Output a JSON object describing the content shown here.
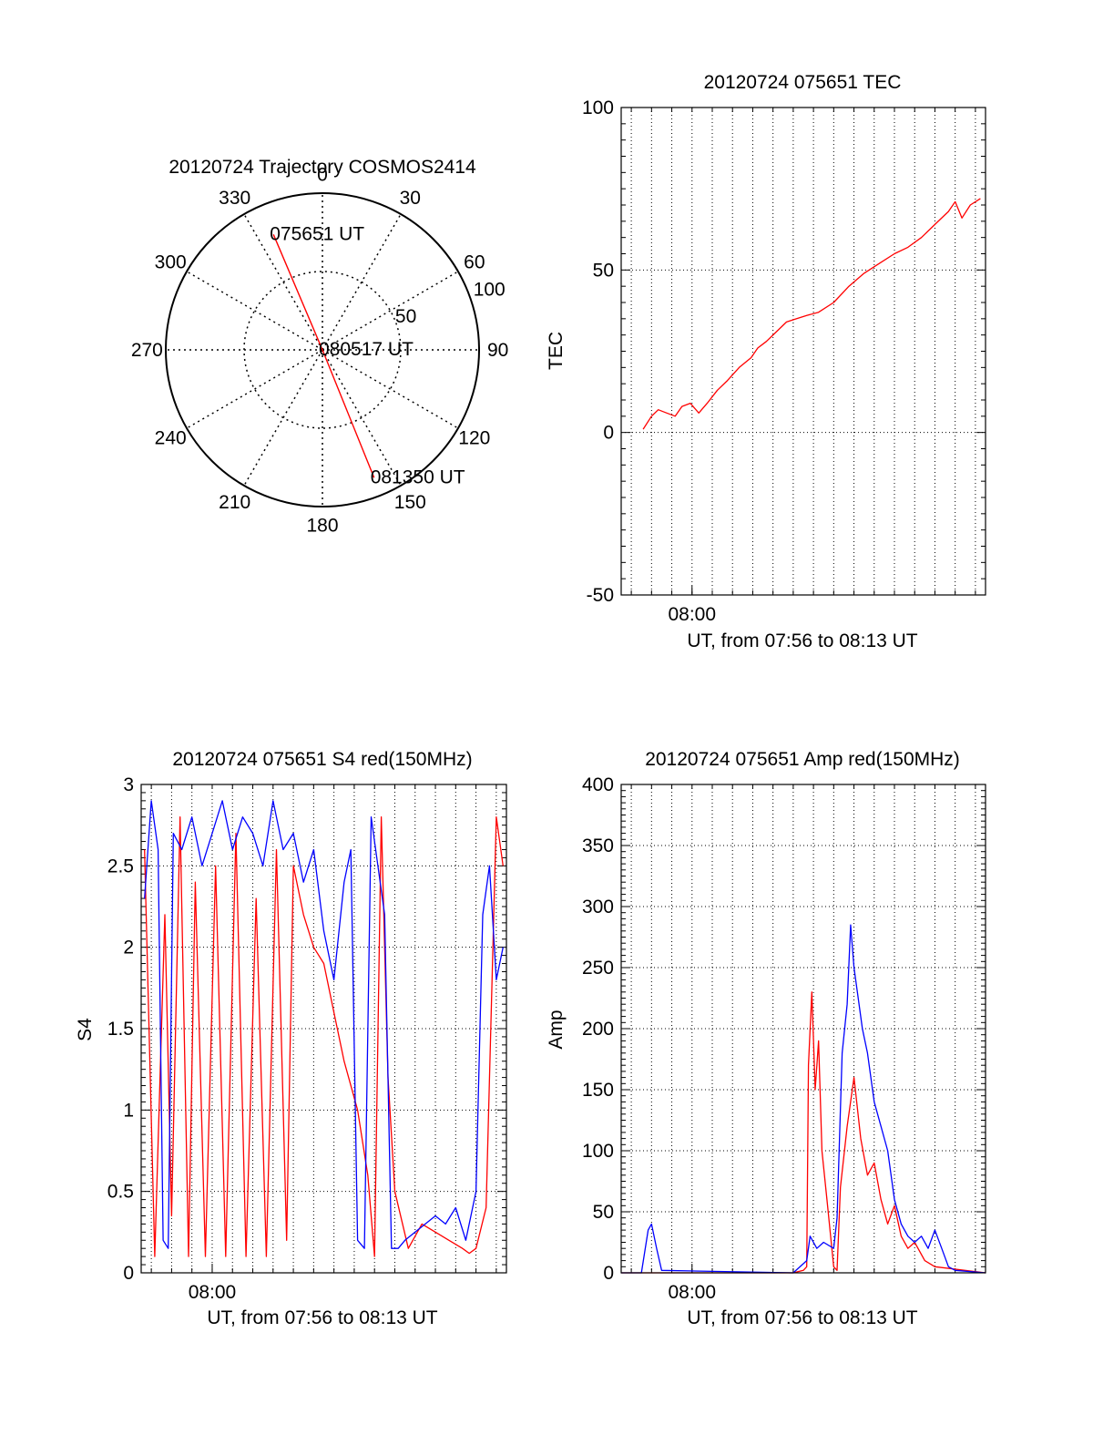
{
  "colors": {
    "red": "#ff0000",
    "blue": "#0000ff",
    "axis": "#000000",
    "grid": "#000000",
    "background": "#ffffff"
  },
  "chart_data": [
    {
      "id": "trajectory",
      "type": "polar",
      "title": "20120724 Trajectory COSMOS2414",
      "azimuth_labels": [
        "0",
        "30",
        "60",
        "90",
        "120",
        "150",
        "180",
        "210",
        "240",
        "270",
        "300",
        "330"
      ],
      "radial_ticks": [
        50,
        100
      ],
      "radial_tick_labels": [
        "50",
        "100"
      ],
      "rmax": 100,
      "grid": true,
      "series": [
        {
          "color": "red",
          "points": [
            {
              "azimuth": 337,
              "r": 80,
              "label": "075651 UT"
            },
            {
              "azimuth": 0,
              "r": 0,
              "label": "080517 UT"
            },
            {
              "azimuth": 158,
              "r": 88,
              "label": "081350 UT"
            }
          ]
        }
      ]
    },
    {
      "id": "tec",
      "type": "line",
      "title": "20120724 075651 TEC",
      "xlabel": "UT, from 07:56 to 08:13 UT",
      "ylabel": "TEC",
      "xlim": [
        "07:56:30",
        "08:14:30"
      ],
      "ylim": [
        -50,
        100
      ],
      "yticks": [
        -50,
        0,
        50,
        100
      ],
      "ytick_labels": [
        "-50",
        "0",
        "50",
        "100"
      ],
      "xtick_labels": [
        {
          "x": "08:00",
          "label": "08:00"
        }
      ],
      "grid": true,
      "series": [
        {
          "color": "red",
          "x": [
            "07:57:35",
            "07:58:00",
            "07:58:20",
            "07:58:45",
            "07:59:10",
            "07:59:30",
            "07:59:55",
            "08:00:20",
            "08:00:45",
            "08:01:15",
            "08:01:45",
            "08:02:20",
            "08:02:55",
            "08:03:15",
            "08:03:40",
            "08:04:10",
            "08:04:40",
            "08:05:10",
            "08:05:40",
            "08:06:15",
            "08:07:00",
            "08:07:45",
            "08:08:30",
            "08:09:15",
            "08:10:00",
            "08:10:40",
            "08:11:20",
            "08:12:00",
            "08:12:40",
            "08:13:00",
            "08:13:20",
            "08:13:45",
            "08:14:15"
          ],
          "values": [
            1,
            5,
            7,
            6,
            5,
            8,
            9,
            6,
            9,
            13,
            16,
            20,
            23,
            26,
            28,
            31,
            34,
            35,
            36,
            37,
            40,
            45,
            49,
            52,
            55,
            57,
            60,
            64,
            68,
            71,
            66,
            70,
            72
          ]
        }
      ]
    },
    {
      "id": "s4",
      "type": "line",
      "title": "20120724 075651 S4 red(150MHz)",
      "xlabel": "UT, from 07:56 to 08:13 UT",
      "ylabel": "S4",
      "xlim": [
        "07:56:30",
        "08:14:30"
      ],
      "ylim": [
        0,
        3
      ],
      "yticks": [
        0,
        0.5,
        1,
        1.5,
        2,
        2.5,
        3
      ],
      "ytick_labels": [
        "0",
        "0.5",
        "1",
        "1.5",
        "2",
        "2.5",
        "3"
      ],
      "xtick_labels": [
        {
          "x": "08:00",
          "label": "08:00"
        }
      ],
      "grid": true,
      "series": [
        {
          "color": "red",
          "x": [
            "07:56:40",
            "07:57:10",
            "07:57:40",
            "07:58:00",
            "07:58:25",
            "07:58:50",
            "07:59:10",
            "07:59:40",
            "08:00:10",
            "08:00:40",
            "08:01:10",
            "08:01:40",
            "08:02:10",
            "08:02:40",
            "08:03:10",
            "08:03:40",
            "08:04:00",
            "08:04:30",
            "08:05:00",
            "08:05:30",
            "08:06:00",
            "08:06:30",
            "08:07:10",
            "08:07:40",
            "08:08:00",
            "08:08:20",
            "08:08:40",
            "08:09:00",
            "08:09:40",
            "08:10:20",
            "08:11:00",
            "08:11:40",
            "08:12:20",
            "08:12:40",
            "08:13:00",
            "08:13:30",
            "08:14:00",
            "08:14:20"
          ],
          "values": [
            2.6,
            0.1,
            2.2,
            0.35,
            2.8,
            0.1,
            2.4,
            0.1,
            2.5,
            0.1,
            2.7,
            0.1,
            2.3,
            0.1,
            2.6,
            0.2,
            2.5,
            2.2,
            2.0,
            1.9,
            1.6,
            1.3,
            1.0,
            0.6,
            0.1,
            2.8,
            1.2,
            0.5,
            0.15,
            0.3,
            0.25,
            0.2,
            0.15,
            0.12,
            0.15,
            0.4,
            2.8,
            2.5
          ]
        },
        {
          "color": "blue",
          "x": [
            "07:56:40",
            "07:57:00",
            "07:57:20",
            "07:57:35",
            "07:57:50",
            "07:58:05",
            "07:58:30",
            "07:59:00",
            "07:59:30",
            "08:00:00",
            "08:00:30",
            "08:01:00",
            "08:01:30",
            "08:02:00",
            "08:02:30",
            "08:03:00",
            "08:03:30",
            "08:04:00",
            "08:04:30",
            "08:05:00",
            "08:05:30",
            "08:06:00",
            "08:06:30",
            "08:06:50",
            "08:07:10",
            "08:07:30",
            "08:07:50",
            "08:08:10",
            "08:08:30",
            "08:08:50",
            "08:09:10",
            "08:09:30",
            "08:10:00",
            "08:10:30",
            "08:11:00",
            "08:11:30",
            "08:12:00",
            "08:12:30",
            "08:13:00",
            "08:13:20",
            "08:13:40",
            "08:14:00",
            "08:14:20"
          ],
          "values": [
            2.3,
            2.9,
            2.6,
            0.2,
            0.15,
            2.7,
            2.6,
            2.8,
            2.5,
            2.7,
            2.9,
            2.6,
            2.8,
            2.7,
            2.5,
            2.9,
            2.6,
            2.7,
            2.4,
            2.6,
            2.1,
            1.8,
            2.4,
            2.6,
            0.2,
            0.15,
            2.8,
            2.5,
            2.2,
            0.15,
            0.15,
            0.2,
            0.25,
            0.3,
            0.35,
            0.3,
            0.4,
            0.2,
            0.5,
            2.2,
            2.5,
            1.8,
            2.0
          ]
        }
      ]
    },
    {
      "id": "amp",
      "type": "line",
      "title": "20120724 075651 Amp red(150MHz)",
      "xlabel": "UT, from 07:56 to 08:13 UT",
      "ylabel": "Amp",
      "xlim": [
        "07:56:30",
        "08:14:30"
      ],
      "ylim": [
        0,
        400
      ],
      "yticks": [
        0,
        50,
        100,
        150,
        200,
        250,
        300,
        350,
        400
      ],
      "ytick_labels": [
        "0",
        "50",
        "100",
        "150",
        "200",
        "250",
        "300",
        "350",
        "400"
      ],
      "xtick_labels": [
        {
          "x": "08:00",
          "label": "08:00"
        }
      ],
      "grid": true,
      "series": [
        {
          "color": "red",
          "x": [
            "07:56:30",
            "08:05:00",
            "08:05:30",
            "08:05:40",
            "08:05:45",
            "08:05:55",
            "08:06:05",
            "08:06:15",
            "08:06:25",
            "08:06:40",
            "08:07:00",
            "08:07:10",
            "08:07:20",
            "08:07:40",
            "08:08:00",
            "08:08:20",
            "08:08:40",
            "08:09:00",
            "08:09:20",
            "08:09:40",
            "08:10:00",
            "08:10:20",
            "08:10:40",
            "08:11:00",
            "08:11:30",
            "08:12:00",
            "08:14:30"
          ],
          "values": [
            0,
            0,
            2,
            5,
            170,
            230,
            150,
            190,
            100,
            60,
            5,
            2,
            70,
            120,
            160,
            110,
            80,
            90,
            60,
            40,
            55,
            30,
            20,
            25,
            10,
            5,
            0
          ]
        },
        {
          "color": "blue",
          "x": [
            "07:56:30",
            "07:57:30",
            "07:57:50",
            "07:58:00",
            "07:58:15",
            "07:58:30",
            "08:05:00",
            "08:05:40",
            "08:05:50",
            "08:06:10",
            "08:06:30",
            "08:07:00",
            "08:07:10",
            "08:07:25",
            "08:07:40",
            "08:07:50",
            "08:08:00",
            "08:08:10",
            "08:08:25",
            "08:08:40",
            "08:09:00",
            "08:09:20",
            "08:09:40",
            "08:10:00",
            "08:10:20",
            "08:10:40",
            "08:11:00",
            "08:11:20",
            "08:11:40",
            "08:12:00",
            "08:12:20",
            "08:12:40",
            "08:13:00",
            "08:14:30"
          ],
          "values": [
            0,
            0,
            35,
            40,
            20,
            2,
            0,
            10,
            30,
            20,
            25,
            20,
            45,
            180,
            220,
            285,
            250,
            230,
            200,
            180,
            140,
            120,
            100,
            60,
            40,
            30,
            25,
            30,
            20,
            35,
            20,
            5,
            2,
            0
          ]
        }
      ]
    }
  ]
}
